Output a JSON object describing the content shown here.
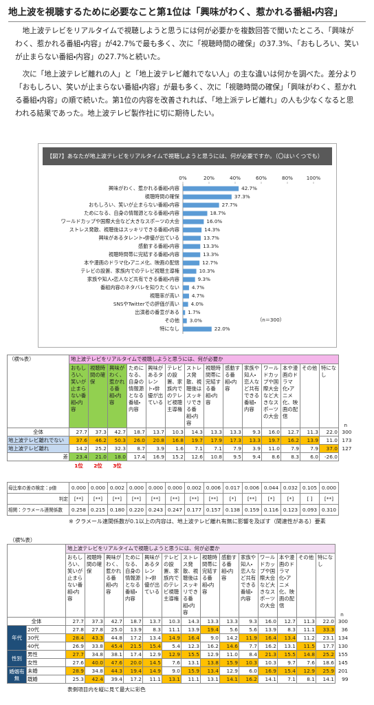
{
  "article": {
    "title": "地上波を視聴するために必要なこと第1位は「興味がわく、惹かれる番組・内容」",
    "paragraphs": [
      "地上波テレビをリアルタイムで視聴しようと思うには何が必要かを複数回答で聞いたところ、「興味がわく、惹かれる番組・内容」が42.7%で最も多く、次に「視聴時間の確保」の37.3%、「おもしろい、笑いが止まらない番組・内容」の27.7%と続いた。",
      "次に「地上波テレビ離れの人」と「地上波テレビ離れでない人」の主な違いは何かを調べた。差分より「おもしろい、笑いが止まらない番組・内容」が最も多く、次に「視聴時間の確保」「興味がわく、惹かれる番組・内容」の順で続いた。第1位の内容を改善されれば、「地上派テレビ離れ」の人も少なくなると思われる結果であった。地上波テレビ製作社に切に期待したい。"
    ]
  },
  "chart_data": {
    "type": "bar",
    "orientation": "horizontal",
    "title": "【図7】あなたが地上波テレビをリアルタイムで視聴しようと思うには、何が必要ですか。（〇はいくつでも）",
    "categories": [
      "興味がわく、惹かれる番組・内容",
      "視聴時間の確保",
      "おもしろい、笑いが止まらない番組・内容",
      "ためになる、自身の情報源となる番組・内容",
      "ワールドカップや国際大会など大きなスポーツの大会",
      "ストレス発散、視聴後はスッキリできる番組・内容",
      "興味があるタレント・俳優が出ている",
      "感動する番組・内容",
      "視聴時間帯に完結する番組・内容",
      "本や漫画のドラマ化・アニメ化、映画の配信",
      "テレビの設置、家族内でのテレビ視聴主導権",
      "家族や知人・恋人など共有できる番組・内容",
      "番組内容のネタバレを知りたくない",
      "視聴率が高い",
      "SNSやTwitterでの評価が高い",
      "出演者の番宣がある",
      "その他",
      "特になし"
    ],
    "values": [
      42.7,
      37.3,
      27.7,
      18.7,
      16.0,
      14.3,
      13.7,
      13.3,
      13.3,
      12.7,
      10.3,
      9.3,
      4.7,
      4.7,
      4.0,
      1.7,
      3.0,
      22.0
    ],
    "value_labels": [
      "42.7%",
      "37.3%",
      "27.7%",
      "18.7%",
      "16.0%",
      "14.3%",
      "13.7%",
      "13.3%",
      "13.3%",
      "12.7%",
      "10.3%",
      "9.3%",
      "4.7%",
      "4.7%",
      "4.0%",
      "1.7%",
      "3.0%",
      "22.0%"
    ],
    "xlim": [
      0,
      100
    ],
    "xticks": [
      {
        "value": 0,
        "label": "0%"
      },
      {
        "value": 20,
        "label": "20%"
      },
      {
        "value": 40,
        "label": "40%"
      },
      {
        "value": 60,
        "label": "60%"
      },
      {
        "value": 80,
        "label": "80%"
      },
      {
        "value": 100,
        "label": "100%"
      }
    ],
    "note": "（n＝300）",
    "color": "#5b9bd5"
  },
  "table1": {
    "corner": "（横%表）",
    "group_header": "地上波テレビをリアルタイムで視聴しようと思うには、何が必要か",
    "columns": [
      "おもしろい、笑いが止まらない番組・内容",
      "視聴時間の確保",
      "興味がわく、惹かれる番組・内容",
      "ためになる、自身の情報源となる番組・内容",
      "興味があるタレント・俳優が出ている",
      "テレビの設置、家族内でのテレビ視聴主導権",
      "ストレス発散、視聴後はスッキリできる番組・内容",
      "視聴時間帯に完結する番組・内容",
      "感動する番組・内容",
      "家族や知人・恋人など共有できる番組・内容",
      "ワールドカップや国際大会など大きなスポーツの大会",
      "本や漫画のドラマ化・アニメ化、映画の配信",
      "その他",
      "特になし"
    ],
    "n_header": "n",
    "rows": [
      {
        "label": "全体",
        "values": [
          "27.7",
          "37.3",
          "42.7",
          "18.7",
          "13.7",
          "10.3",
          "14.3",
          "13.3",
          "13.3",
          "9.3",
          "16.0",
          "12.7",
          "11.3",
          "22.0"
        ],
        "n": 300
      },
      {
        "label": "地上波テレビ離れでない",
        "values": [
          "37.6",
          "46.2",
          "50.3",
          "26.0",
          "20.8",
          "16.8",
          "19.7",
          "17.9",
          "17.3",
          "13.3",
          "19.7",
          "16.2",
          "13.9",
          "11.0"
        ],
        "n": 173
      },
      {
        "label": "地上波テレビ離れ",
        "values": [
          "14.2",
          "25.2",
          "32.3",
          "8.7",
          "3.9",
          "1.6",
          "7.1",
          "7.1",
          "7.9",
          "3.9",
          "11.0",
          "7.9",
          "7.9",
          "37.0"
        ],
        "n": 127
      }
    ],
    "diff": {
      "label": "差",
      "values": [
        "23.4",
        "21.0",
        "18.0",
        "17.4",
        "16.9",
        "15.2",
        "12.6",
        "10.8",
        "9.5",
        "9.4",
        "8.6",
        "8.3",
        "6.0",
        "-26.0"
      ]
    },
    "ranks": [
      "1位",
      "2位",
      "3位"
    ],
    "tests": [
      {
        "label": "母比率の差の検定：p値",
        "values": [
          "0.000",
          "0.000",
          "0.002",
          "0.000",
          "0.000",
          "0.000",
          "0.002",
          "0.006",
          "0.017",
          "0.006",
          "0.044",
          "0.032",
          "0.105",
          "0.000"
        ]
      },
      {
        "label": "判定",
        "values": [
          "[**]",
          "[**]",
          "[**]",
          "[**]",
          "[**]",
          "[**]",
          "[**]",
          "[**]",
          "[*]",
          "[**]",
          "[*]",
          "[*]",
          "[ ]",
          "[**]"
        ]
      },
      {
        "label": "相関：クラメール連関係数",
        "values": [
          "0.258",
          "0.215",
          "0.180",
          "0.220",
          "0.243",
          "0.247",
          "0.177",
          "0.157",
          "0.138",
          "0.159",
          "0.116",
          "0.123",
          "0.093",
          "0.310"
        ]
      }
    ],
    "note": "※ クラメール連関係数が0.1以上の内容は、地上波テレビ離れ有無に影響を及ぼす（関連性がある）要素"
  },
  "table2": {
    "corner": "（横%表）",
    "group_header": "地上波テレビをリアルタイムで視聴しようと思うには、何が必要か",
    "columns": [
      "おもしろい、笑いが止まらない番組・内容",
      "視聴時間の確保",
      "興味がわく、惹かれる番組・内容",
      "ためになる、自身の情報源となる番組・内容",
      "興味があるタレント・俳優が出ている",
      "テレビの設置、家族内でのテレビ視聴主導権",
      "ストレス発散、視聴後はスッキリできる番組・内容",
      "視聴時間帯に完結する番組・内容",
      "感動する番組・内容",
      "家族や知人・恋人など共有できる番組・内容",
      "ワールドカップや国際大会など大きなスポーツの大会",
      "本や漫画のドラマ化・アニメ化、映画の配信",
      "その他",
      "特になし"
    ],
    "n_header": "n",
    "total": {
      "label": "全体",
      "values": [
        "27.7",
        "37.3",
        "42.7",
        "18.7",
        "13.7",
        "10.3",
        "14.3",
        "13.3",
        "13.3",
        "9.3",
        "16.0",
        "12.7",
        "11.3",
        "22.0"
      ],
      "n": 300
    },
    "groups": [
      {
        "label": "年代",
        "rows": [
          {
            "label": "20代",
            "values": [
              "27.8",
              "27.8",
              "25.0",
              "13.9",
              "8.3",
              "11.1",
              "13.9",
              "19.4",
              "5.6",
              "5.6",
              "13.9",
              "8.3",
              "11.1",
              "33.3"
            ],
            "n": 36
          },
          {
            "label": "30代",
            "values": [
              "28.4",
              "43.3",
              "44.8",
              "17.2",
              "13.4",
              "14.9",
              "16.4",
              "9.0",
              "14.2",
              "11.9",
              "16.4",
              "13.4",
              "11.2",
              "23.1"
            ],
            "n": 134
          },
          {
            "label": "40代",
            "values": [
              "26.9",
              "33.8",
              "45.4",
              "21.5",
              "15.4",
              "5.4",
              "12.3",
              "16.2",
              "14.6",
              "7.7",
              "16.2",
              "13.1",
              "11.5",
              "17.7"
            ],
            "n": 130
          }
        ]
      },
      {
        "label": "性別",
        "rows": [
          {
            "label": "男性",
            "values": [
              "27.7",
              "34.8",
              "38.1",
              "17.4",
              "12.9",
              "12.9",
              "15.5",
              "12.9",
              "11.0",
              "8.4",
              "21.3",
              "15.5",
              "14.8",
              "25.2"
            ],
            "n": 155
          },
          {
            "label": "女性",
            "values": [
              "27.6",
              "40.0",
              "47.6",
              "20.0",
              "14.5",
              "7.6",
              "13.1",
              "13.8",
              "15.9",
              "10.3",
              "10.3",
              "9.7",
              "7.6",
              "18.6"
            ],
            "n": 145
          }
        ]
      },
      {
        "label": "婚姻有無",
        "rows": [
          {
            "label": "未婚",
            "values": [
              "28.9",
              "34.8",
              "44.3",
              "19.4",
              "14.9",
              "9.0",
              "15.9",
              "13.4",
              "12.9",
              "6.0",
              "16.9",
              "15.4",
              "12.9",
              "25.9"
            ],
            "n": 201
          },
          {
            "label": "既婚",
            "values": [
              "25.3",
              "42.4",
              "39.4",
              "17.2",
              "11.1",
              "13.1",
              "11.1",
              "13.1",
              "14.1",
              "16.2",
              "14.1",
              "7.1",
              "8.1",
              "14.1"
            ],
            "n": 99
          }
        ]
      }
    ],
    "footnote": "表側項目内を縦に見て最大に彩色"
  }
}
